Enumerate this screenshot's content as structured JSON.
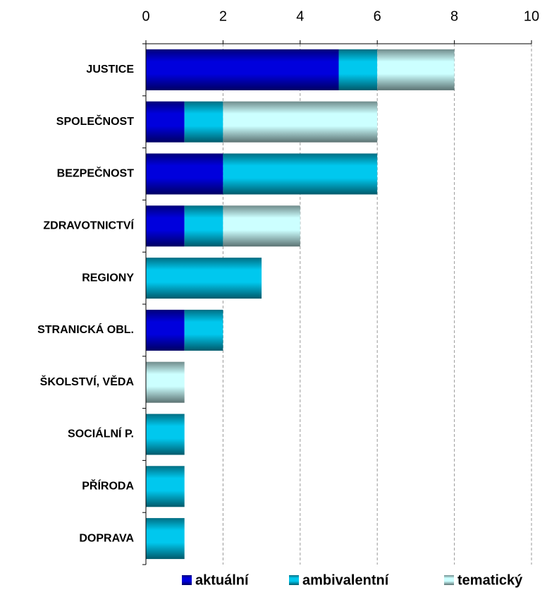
{
  "chart_data": {
    "type": "bar",
    "orientation": "horizontal",
    "stacked": true,
    "categories": [
      "JUSTICE",
      "SPOLEČNOST",
      "BEZPEČNOST",
      "ZDRAVOTNICTVÍ",
      "REGIONY",
      "STRANICKÁ OBL.",
      "ŠKOLSTVÍ, VĚDA",
      "SOCIÁLNÍ P.",
      "PŘÍRODA",
      "DOPRAVA"
    ],
    "series": [
      {
        "name": "aktuální",
        "color": "#0000dd",
        "values": [
          5,
          1,
          2,
          1,
          0,
          1,
          0,
          0,
          0,
          0
        ]
      },
      {
        "name": "ambivalentní",
        "color": "#00c8ee",
        "values": [
          1,
          1,
          4,
          1,
          3,
          1,
          0,
          1,
          1,
          1
        ]
      },
      {
        "name": "tematický",
        "color": "#ccffff",
        "values": [
          2,
          4,
          0,
          2,
          0,
          0,
          1,
          0,
          0,
          0
        ]
      }
    ],
    "xlim": [
      0,
      10
    ],
    "xticks": [
      0,
      2,
      4,
      6,
      8,
      10
    ],
    "grid": true,
    "legend": "bottom"
  }
}
